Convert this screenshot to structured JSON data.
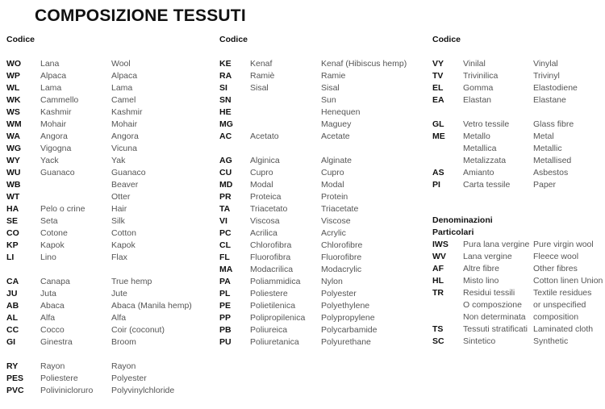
{
  "title": "COMPOSIZIONE TESSUTI",
  "columns": [
    {
      "sections": [
        {
          "header": "Codice",
          "groups": [
            [
              [
                "WO",
                "Lana",
                "Wool"
              ],
              [
                "WP",
                "Alpaca",
                "Alpaca"
              ],
              [
                "WL",
                "Lama",
                "Lama"
              ],
              [
                "WK",
                "Cammello",
                "Camel"
              ],
              [
                "WS",
                "Kashmir",
                "Kashmir"
              ],
              [
                "WM",
                "Mohair",
                "Mohair"
              ],
              [
                "WA",
                "Angora",
                "Angora"
              ],
              [
                "WG",
                "Vigogna",
                "Vicuna"
              ],
              [
                "WY",
                "Yack",
                "Yak"
              ],
              [
                "WU",
                "Guanaco",
                "Guanaco"
              ],
              [
                "WB",
                "",
                "Beaver"
              ],
              [
                "WT",
                "",
                "Otter"
              ],
              [
                "HA",
                "Pelo o crine",
                "Hair"
              ],
              [
                "SE",
                "Seta",
                "Silk"
              ],
              [
                "CO",
                "Cotone",
                "Cotton"
              ],
              [
                "KP",
                "Kapok",
                "Kapok"
              ],
              [
                "LI",
                "Lino",
                "Flax"
              ]
            ],
            [
              [
                "CA",
                "Canapa",
                "True hemp"
              ],
              [
                "JU",
                "Juta",
                "Jute"
              ],
              [
                "AB",
                "Abaca",
                "Abaca (Manila hemp)"
              ],
              [
                "AL",
                "Alfa",
                "Alfa"
              ],
              [
                "CC",
                "Cocco",
                "Coir (coconut)"
              ],
              [
                "GI",
                "Ginestra",
                "Broom"
              ]
            ],
            [
              [
                "RY",
                "Rayon",
                "Rayon"
              ],
              [
                "PES",
                "Poliestere",
                "Polyester"
              ],
              [
                "PVC",
                "Polivinicloruro",
                "Polyvinylchloride"
              ]
            ]
          ]
        }
      ]
    },
    {
      "sections": [
        {
          "header": "Codice",
          "groups": [
            [
              [
                "KE",
                "Kenaf",
                "Kenaf (Hibiscus hemp)"
              ],
              [
                "RA",
                "Ramiè",
                "Ramie"
              ],
              [
                "SI",
                "Sisal",
                "Sisal"
              ],
              [
                "SN",
                "",
                "Sun"
              ],
              [
                "HE",
                "",
                "Henequen"
              ],
              [
                "MG",
                "",
                "Maguey"
              ],
              [
                "AC",
                "Acetato",
                "Acetate"
              ]
            ],
            [
              [
                "AG",
                "Alginica",
                "Alginate"
              ],
              [
                "CU",
                "Cupro",
                "Cupro"
              ],
              [
                "MD",
                "Modal",
                "Modal"
              ],
              [
                "PR",
                "Proteica",
                "Protein"
              ],
              [
                "TA",
                "Triacetato",
                "Triacetate"
              ],
              [
                "VI",
                "Viscosa",
                "Viscose"
              ],
              [
                "PC",
                "Acrilica",
                "Acrylic"
              ],
              [
                "CL",
                "Chlorofibra",
                "Chlorofibre"
              ],
              [
                "FL",
                "Fluorofibra",
                "Fluorofibre"
              ],
              [
                "MA",
                "Modacrilica",
                "Modacrylic"
              ],
              [
                "PA",
                "Poliammidica",
                "Nylon"
              ],
              [
                "PL",
                "Poliestere",
                "Polyester"
              ],
              [
                "PE",
                "Polietilenica",
                "Polyethylene"
              ],
              [
                "PP",
                "Polipropilenica",
                "Polypropylene"
              ],
              [
                "PB",
                "Poliureica",
                "Polycarbamide"
              ],
              [
                "PU",
                "Poliuretanica",
                "Polyurethane"
              ]
            ]
          ]
        }
      ]
    },
    {
      "sections": [
        {
          "header": "Codice",
          "groups": [
            [
              [
                "VY",
                "Vinilal",
                "Vinylal"
              ],
              [
                "TV",
                "Trivinilica",
                "Trivinyl"
              ],
              [
                "EL",
                "Gomma",
                "Elastodiene"
              ],
              [
                "EA",
                "Elastan",
                "Elastane"
              ]
            ],
            [
              [
                "GL",
                "Vetro tessile",
                "Glass fibre"
              ],
              [
                "ME",
                "Metallo",
                "Metal"
              ],
              [
                "",
                "Metallica",
                "Metallic"
              ],
              [
                "",
                "Metalizzata",
                "Metallised"
              ],
              [
                "AS",
                "Amianto",
                "Asbestos"
              ],
              [
                "PI",
                "Carta tessile",
                "Paper"
              ]
            ]
          ]
        },
        {
          "header": "Denominazioni Particolari",
          "groups": [
            [
              [
                "IWS",
                "Pura lana vergine",
                "Pure virgin wool"
              ],
              [
                "WV",
                "Lana vergine",
                "Fleece wool"
              ],
              [
                "AF",
                "Altre fibre",
                "Other fibres"
              ],
              [
                "HL",
                "Misto lino",
                "Cotton linen Union"
              ],
              [
                "TR",
                "Residui tessili",
                "Textile residues"
              ],
              [
                "",
                "O composzione",
                "or unspecified"
              ],
              [
                "",
                "Non determinata",
                "composition"
              ],
              [
                "TS",
                "Tessuti stratificati",
                "Laminated cloth"
              ],
              [
                "SC",
                "Sintetico",
                "Synthetic"
              ]
            ]
          ]
        }
      ]
    }
  ]
}
